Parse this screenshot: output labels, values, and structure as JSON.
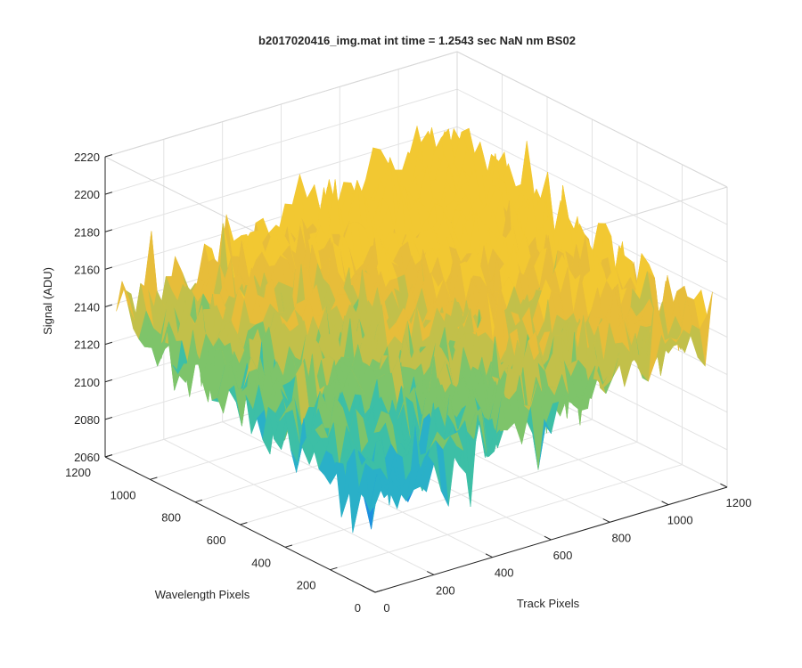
{
  "window": {
    "title": "b2017020416_img.mat int time = 1.2543 sec  NaN nm BS02"
  },
  "chart_data": {
    "type": "surface",
    "title": "b2017020416_img.mat int time = 1.2543 sec  NaN nm BS02",
    "xlabel": "Track Pixels",
    "ylabel": "Wavelength Pixels",
    "zlabel": "Signal (ADU)",
    "xlim": [
      0,
      1200
    ],
    "ylim": [
      0,
      1200
    ],
    "zlim": [
      2060,
      2220
    ],
    "x_ticks": [
      "0",
      "200",
      "400",
      "600",
      "800",
      "1000",
      "1200"
    ],
    "y_ticks": [
      "0",
      "200",
      "400",
      "600",
      "800",
      "1000",
      "1200"
    ],
    "z_ticks": [
      "2060",
      "2080",
      "2100",
      "2120",
      "2140",
      "2160",
      "2180",
      "2200",
      "2220"
    ],
    "grid": true,
    "box": true,
    "colormap": "parula",
    "colormap_colors": [
      "#0f62d6",
      "#1e90e0",
      "#2ab0c8",
      "#3dbfa6",
      "#7ec46a",
      "#c2c04a",
      "#e7bd3a",
      "#f2c832"
    ],
    "surface": {
      "data_x_range": [
        0,
        1150
      ],
      "data_y_range": [
        0,
        1150
      ],
      "typical_signal_min": 2085,
      "typical_signal_max": 2165,
      "mean_signal_near_origin": 2110,
      "mean_signal_at_far_corner": 2180
    }
  }
}
